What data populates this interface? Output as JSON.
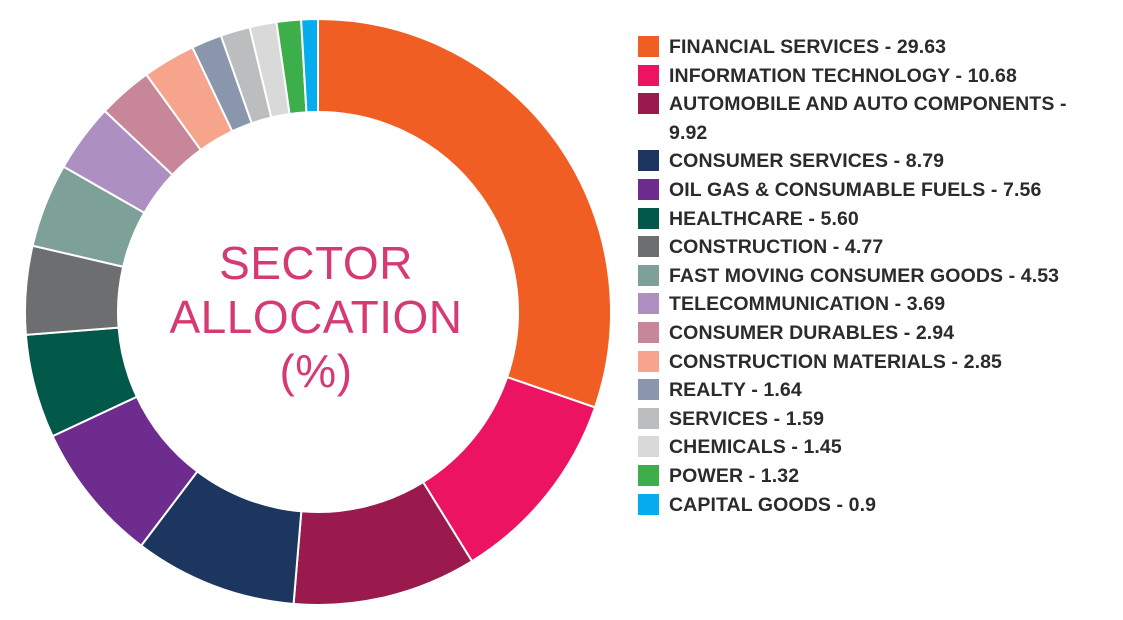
{
  "chart_data": {
    "type": "pie",
    "variant": "donut",
    "title_lines": [
      "SECTOR",
      "ALLOCATION",
      "(%)"
    ],
    "legend_position": "right",
    "slices": [
      {
        "label": "FINANCIAL SERVICES - 29.63",
        "value": 29.63,
        "color": "#f15e24"
      },
      {
        "label": "INFORMATION TECHNOLOGY - 10.68",
        "value": 10.68,
        "color": "#ec1462"
      },
      {
        "label": "AUTOMOBILE AND AUTO COMPONENTS - 9.92",
        "value": 9.92,
        "color": "#9a1a4e"
      },
      {
        "label": "CONSUMER SERVICES - 8.79",
        "value": 8.79,
        "color": "#1c3660"
      },
      {
        "label": "OIL GAS & CONSUMABLE FUELS - 7.56",
        "value": 7.56,
        "color": "#6f2c8f"
      },
      {
        "label": "HEALTHCARE - 5.60",
        "value": 5.6,
        "color": "#02594a"
      },
      {
        "label": "CONSTRUCTION - 4.77",
        "value": 4.77,
        "color": "#6d6e70"
      },
      {
        "label": "FAST MOVING CONSUMER GOODS - 4.53",
        "value": 4.53,
        "color": "#7da198"
      },
      {
        "label": "TELECOMMUNICATION - 3.69",
        "value": 3.69,
        "color": "#ad8fc2"
      },
      {
        "label": "CONSUMER DURABLES - 2.94",
        "value": 2.94,
        "color": "#c88798"
      },
      {
        "label": "CONSTRUCTION MATERIALS - 2.85",
        "value": 2.85,
        "color": "#f6a48b"
      },
      {
        "label": "REALTY - 1.64",
        "value": 1.64,
        "color": "#8996ac"
      },
      {
        "label": "SERVICES - 1.59",
        "value": 1.59,
        "color": "#bcbdbe"
      },
      {
        "label": "CHEMICALS - 1.45",
        "value": 1.45,
        "color": "#d9d9d9"
      },
      {
        "label": "POWER  - 1.32",
        "value": 1.32,
        "color": "#3daf4a"
      },
      {
        "label": "CAPITAL GOODS  - 0.9",
        "value": 0.9,
        "color": "#05adef"
      }
    ]
  }
}
